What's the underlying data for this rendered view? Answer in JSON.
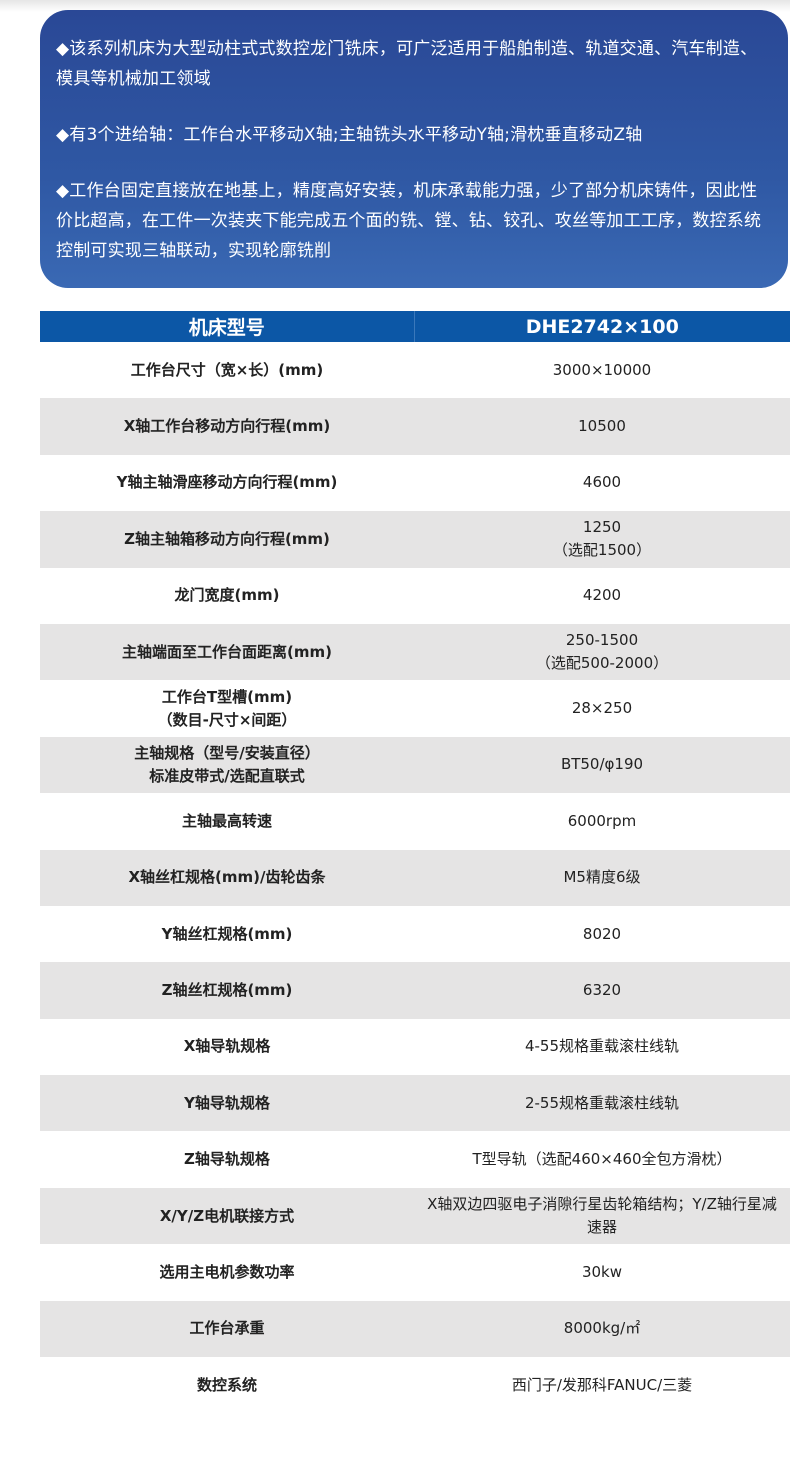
{
  "intro": [
    "◆该系列机床为大型动柱式式数控龙门铣床，可广泛适用于船舶制造、轨道交通、汽车制造、模具等机械加工领域",
    "◆有3个进给轴：工作台水平移动X轴;主轴铣头水平移动Y轴;滑枕垂直移动Z轴",
    "◆工作台固定直接放在地基上，精度高好安装，机床承载能力强，少了部分机床铸件，因此性价比超高，在工件一次装夹下能完成五个面的铣、镗、钻、铰孔、攻丝等加工工序，数控系统控制可实现三轴联动，实现轮廓铣削"
  ],
  "table": {
    "header": [
      "机床型号",
      "DHE2742×100"
    ],
    "rows": [
      [
        "工作台尺寸（宽×长）(mm)",
        "3000×10000"
      ],
      [
        "X轴工作台移动方向行程(mm)",
        "10500"
      ],
      [
        "Y轴主轴滑座移动方向行程(mm)",
        "4600"
      ],
      [
        "Z轴主轴箱移动方向行程(mm)",
        "1250\n（选配1500）"
      ],
      [
        "龙门宽度(mm)",
        "4200"
      ],
      [
        "主轴端面至工作台面距离(mm)",
        "250-1500\n（选配500-2000）"
      ],
      [
        "工作台T型槽(mm)\n（数目-尺寸×间距）",
        "28×250"
      ],
      [
        "主轴规格（型号/安装直径）\n标准皮带式/选配直联式",
        "BT50/φ190"
      ],
      [
        "主轴最高转速",
        "6000rpm"
      ],
      [
        "X轴丝杠规格(mm)/齿轮齿条",
        "M5精度6级"
      ],
      [
        "Y轴丝杠规格(mm)",
        "8020"
      ],
      [
        "Z轴丝杠规格(mm)",
        "6320"
      ],
      [
        "X轴导轨规格",
        "4-55规格重载滚柱线轨"
      ],
      [
        "Y轴导轨规格",
        "2-55规格重载滚柱线轨"
      ],
      [
        "Z轴导轨规格",
        "T型导轨（选配460×460全包方滑枕）"
      ],
      [
        "X/Y/Z电机联接方式",
        "X轴双边四驱电子消隙行星齿轮箱结构；Y/Z轴行星减速器"
      ],
      [
        "选用主电机参数功率",
        "30kw"
      ],
      [
        "工作台承重",
        "8000kg/㎡"
      ],
      [
        "数控系统",
        "西门子/发那科FANUC/三菱"
      ]
    ]
  },
  "colors": {
    "card": "#2f58a4",
    "header": "#0c57a6",
    "stripe": "#e5e4e4"
  }
}
